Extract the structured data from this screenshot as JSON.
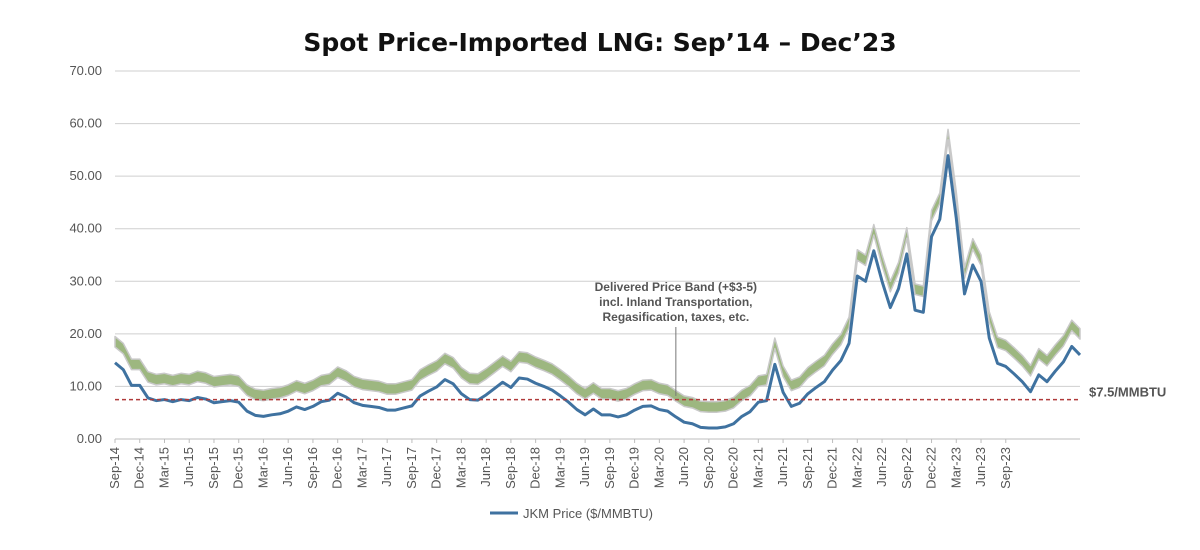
{
  "chart_data": {
    "type": "line",
    "title": "Spot Price-Imported LNG: Sep’14 – Dec’23",
    "ylim": [
      0,
      70
    ],
    "yticks": [
      "0.00",
      "10.00",
      "20.00",
      "30.00",
      "40.00",
      "50.00",
      "60.00",
      "70.00"
    ],
    "grid": "horizontal",
    "legend_position": "bottom",
    "x_tick_labels": [
      "Sep-14",
      "Dec-14",
      "Mar-15",
      "Jun-15",
      "Sep-15",
      "Dec-15",
      "Mar-16",
      "Jun-16",
      "Sep-16",
      "Dec-16",
      "Mar-17",
      "Jun-17",
      "Sep-17",
      "Dec-17",
      "Mar-18",
      "Jun-18",
      "Sep-18",
      "Dec-18",
      "Mar-19",
      "Jun-19",
      "Sep-19",
      "Dec-19",
      "Mar-20",
      "Jun-20",
      "Sep-20",
      "Dec-20",
      "Mar-21",
      "Jun-21",
      "Sep-21",
      "Dec-21",
      "Mar-22",
      "Jun-22",
      "Sep-22",
      "Dec-22",
      "Mar-23",
      "Jun-23",
      "Sep-23"
    ],
    "x_start": "2014-09",
    "x_end": "2023-12",
    "series": [
      {
        "name": "JKM Price ($/MMBTU)",
        "color": "#3f72a0",
        "values": [
          14.5,
          13.2,
          10.2,
          10.2,
          7.8,
          7.3,
          7.5,
          7.1,
          7.5,
          7.3,
          7.9,
          7.6,
          6.9,
          7.1,
          7.3,
          7.0,
          5.3,
          4.5,
          4.3,
          4.6,
          4.8,
          5.3,
          6.1,
          5.6,
          6.2,
          7.1,
          7.4,
          8.7,
          8.0,
          6.9,
          6.4,
          6.2,
          6.0,
          5.5,
          5.5,
          5.9,
          6.3,
          8.2,
          9.1,
          9.9,
          11.3,
          10.5,
          8.6,
          7.5,
          7.4,
          8.4,
          9.6,
          10.8,
          9.8,
          11.6,
          11.4,
          10.6,
          10.0,
          9.3,
          8.2,
          7.0,
          5.6,
          4.6,
          5.7,
          4.6,
          4.6,
          4.2,
          4.6,
          5.5,
          6.2,
          6.3,
          5.6,
          5.3,
          4.2,
          3.2,
          2.9,
          2.2,
          2.1,
          2.1,
          2.3,
          2.9,
          4.3,
          5.2,
          7.0,
          7.3,
          14.2,
          8.9,
          6.2,
          6.8,
          8.6,
          9.8,
          10.9,
          13.1,
          14.9,
          18.2,
          31.0,
          30.0,
          35.8,
          30.0,
          25.0,
          28.6,
          35.2,
          24.5,
          24.1,
          38.5,
          41.8,
          53.9,
          42.0,
          27.6,
          33.1,
          30.0,
          19.2,
          14.4,
          13.8,
          12.4,
          10.9,
          9.0,
          12.2,
          10.9,
          12.9,
          14.7,
          17.6,
          16.0
        ]
      }
    ],
    "band": {
      "description": "Delivered Price Band (+$3-5)",
      "lower_offset": 3,
      "upper_offset": 5,
      "color": "#9db780"
    },
    "annotation": {
      "lines": [
        "Delivered Price Band (+$3-5)",
        "incl. Inland Transportation,",
        "Regasification, taxes, etc."
      ],
      "x": "2020-05"
    },
    "reference_line": {
      "value": 7.5,
      "label": "$7.5/MMBTU",
      "color": "#b03a3a"
    }
  }
}
